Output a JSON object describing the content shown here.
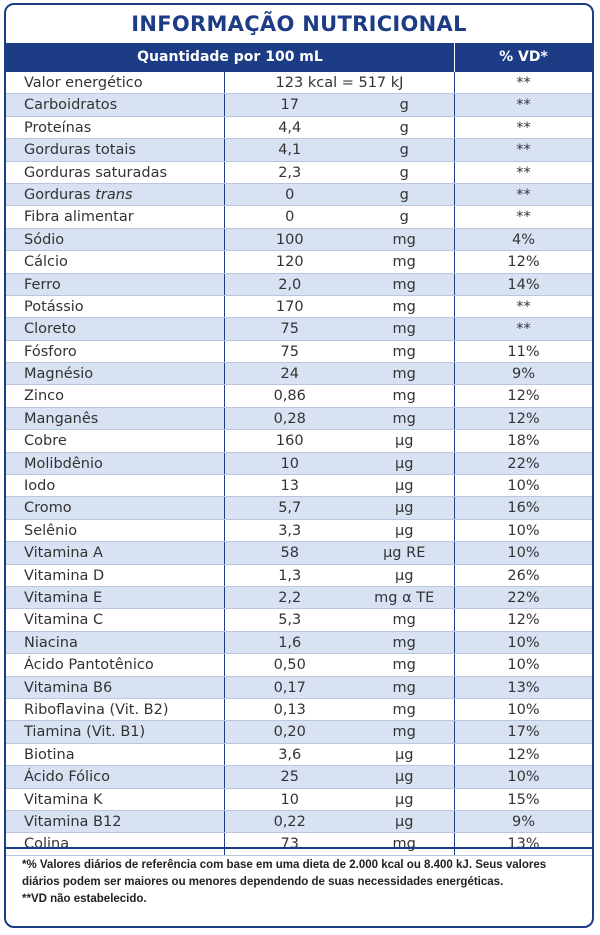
{
  "title": "INFORMAÇÃO NUTRICIONAL",
  "header": {
    "quantity": "Quantidade por 100 mL",
    "vd": "% VD*"
  },
  "rows": [
    {
      "name": "Valor energético",
      "value": "123 kcal = 517 kJ",
      "unit": "",
      "vd": "**"
    },
    {
      "name": "Carboidratos",
      "value": "17",
      "unit": "g",
      "vd": "**"
    },
    {
      "name": "Proteínas",
      "value": "4,4",
      "unit": "g",
      "vd": "**"
    },
    {
      "name": "Gorduras totais",
      "value": "4,1",
      "unit": "g",
      "vd": "**"
    },
    {
      "name": "Gorduras saturadas",
      "value": "2,3",
      "unit": "g",
      "vd": "**"
    },
    {
      "name": "Gorduras",
      "name_italic": "trans",
      "value": "0",
      "unit": "g",
      "vd": "**"
    },
    {
      "name": "Fibra alimentar",
      "value": "0",
      "unit": "g",
      "vd": "**"
    },
    {
      "name": "Sódio",
      "value": "100",
      "unit": "mg",
      "vd": "4%"
    },
    {
      "name": "Cálcio",
      "value": "120",
      "unit": "mg",
      "vd": "12%"
    },
    {
      "name": "Ferro",
      "value": "2,0",
      "unit": "mg",
      "vd": "14%"
    },
    {
      "name": "Potássio",
      "value": "170",
      "unit": "mg",
      "vd": "**"
    },
    {
      "name": "Cloreto",
      "value": "75",
      "unit": "mg",
      "vd": "**"
    },
    {
      "name": "Fósforo",
      "value": "75",
      "unit": "mg",
      "vd": "11%"
    },
    {
      "name": "Magnésio",
      "value": "24",
      "unit": "mg",
      "vd": "9%"
    },
    {
      "name": "Zinco",
      "value": "0,86",
      "unit": "mg",
      "vd": "12%"
    },
    {
      "name": "Manganês",
      "value": "0,28",
      "unit": "mg",
      "vd": "12%"
    },
    {
      "name": "Cobre",
      "value": "160",
      "unit": "µg",
      "vd": "18%"
    },
    {
      "name": "Molibdênio",
      "value": "10",
      "unit": "µg",
      "vd": "22%"
    },
    {
      "name": "Iodo",
      "value": "13",
      "unit": "µg",
      "vd": "10%"
    },
    {
      "name": "Cromo",
      "value": "5,7",
      "unit": "µg",
      "vd": "16%"
    },
    {
      "name": "Selênio",
      "value": "3,3",
      "unit": "µg",
      "vd": "10%"
    },
    {
      "name": "Vitamina A",
      "value": "58",
      "unit": "µg RE",
      "vd": "10%"
    },
    {
      "name": "Vitamina D",
      "value": "1,3",
      "unit": "µg",
      "vd": "26%"
    },
    {
      "name": "Vitamina E",
      "value": "2,2",
      "unit": "mg α TE",
      "vd": "22%"
    },
    {
      "name": "Vitamina C",
      "value": "5,3",
      "unit": "mg",
      "vd": "12%"
    },
    {
      "name": "Niacina",
      "value": "1,6",
      "unit": "mg",
      "vd": "10%"
    },
    {
      "name": "Ácido Pantotênico",
      "value": "0,50",
      "unit": "mg",
      "vd": "10%"
    },
    {
      "name": "Vitamina B6",
      "value": "0,17",
      "unit": "mg",
      "vd": "13%"
    },
    {
      "name": "Riboflavina (Vit. B2)",
      "value": "0,13",
      "unit": "mg",
      "vd": "10%"
    },
    {
      "name": "Tiamina (Vit. B1)",
      "value": "0,20",
      "unit": "mg",
      "vd": "17%"
    },
    {
      "name": "Biotina",
      "value": "3,6",
      "unit": "µg",
      "vd": "12%"
    },
    {
      "name": "Ácido Fólico",
      "value": "25",
      "unit": "µg",
      "vd": "10%"
    },
    {
      "name": "Vitamina K",
      "value": "10",
      "unit": "µg",
      "vd": "15%"
    },
    {
      "name": "Vitamina B12",
      "value": "0,22",
      "unit": "µg",
      "vd": "9%"
    },
    {
      "name": "Colina",
      "value": "73",
      "unit": "mg",
      "vd": "13%"
    }
  ],
  "footnote": {
    "line1": "*% Valores diários de referência com base em uma dieta de 2.000 kcal ou 8.400 kJ. Seus valores diários podem ser maiores ou menores dependendo de suas necessidades energéticas.",
    "line2": "**VD não estabelecido."
  }
}
